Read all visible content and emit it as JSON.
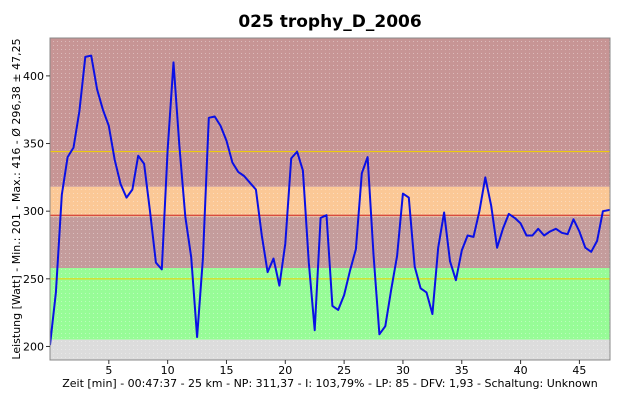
{
  "chart_data": {
    "type": "line",
    "title": "025 trophy_D_2006",
    "ylabel": "Leistung [Watt] - Min.: 201 - Max.: 416 - Ø 296,38 ± 47,25",
    "xlabel": "Zeit [min] - 00:47:37 - 25 km - NP: 311,37 - I: 103,79% - LP: 85 - DFV: 1,93 - Schaltung: Unknown",
    "xlim": [
      0,
      47.6
    ],
    "ylim": [
      190,
      428
    ],
    "x_ticks": [
      5,
      10,
      15,
      20,
      25,
      30,
      35,
      40,
      45
    ],
    "y_ticks": [
      200,
      250,
      300,
      350,
      400
    ],
    "grid": false,
    "zones": [
      {
        "from": 318,
        "to": 428,
        "color": "#c79595"
      },
      {
        "from": 296,
        "to": 318,
        "color": "#fbc896"
      },
      {
        "from": 258,
        "to": 296,
        "color": "#c49c9c"
      },
      {
        "from": 205,
        "to": 258,
        "color": "#97fc97"
      },
      {
        "from": 190,
        "to": 205,
        "color": "#dcdcdc"
      }
    ],
    "reference_lines": [
      {
        "value": 344,
        "color": "#f2d200"
      },
      {
        "value": 297,
        "color": "#cc2222"
      },
      {
        "value": 250,
        "color": "#f2d200"
      }
    ],
    "series": [
      {
        "color": "#0a10e6",
        "x": [
          0,
          0.5,
          1.0,
          1.5,
          2.0,
          2.5,
          3.0,
          3.5,
          4.0,
          4.5,
          5.0,
          5.5,
          6.0,
          6.5,
          7.0,
          7.5,
          8.0,
          8.5,
          9.0,
          9.5,
          10.0,
          10.5,
          11.0,
          11.5,
          12.0,
          12.5,
          13.0,
          13.5,
          14.0,
          14.5,
          15.0,
          15.5,
          16.0,
          16.5,
          17.0,
          17.5,
          18.0,
          18.5,
          19.0,
          19.5,
          20.0,
          20.5,
          21.0,
          21.5,
          22.0,
          22.5,
          23.0,
          23.5,
          24.0,
          24.5,
          25.0,
          25.5,
          26.0,
          26.5,
          27.0,
          27.5,
          28.0,
          28.5,
          29.0,
          29.5,
          30.0,
          30.5,
          31.0,
          31.5,
          32.0,
          32.5,
          33.0,
          33.5,
          34.0,
          34.5,
          35.0,
          35.5,
          36.0,
          36.5,
          37.0,
          37.5,
          38.0,
          38.5,
          39.0,
          39.5,
          40.0,
          40.5,
          41.0,
          41.5,
          42.0,
          42.5,
          43.0,
          43.5,
          44.0,
          44.5,
          45.0,
          45.5,
          46.0,
          46.5,
          47.0,
          47.6
        ],
        "y": [
          201,
          240,
          312,
          340,
          347,
          374,
          414,
          415,
          390,
          375,
          363,
          338,
          320,
          310,
          316,
          341,
          335,
          300,
          262,
          257,
          345,
          410,
          348,
          296,
          266,
          207,
          265,
          369,
          370,
          363,
          352,
          336,
          329,
          326,
          321,
          316,
          282,
          255,
          265,
          245,
          276,
          339,
          344,
          330,
          262,
          212,
          295,
          297,
          230,
          227,
          238,
          256,
          272,
          328,
          340,
          268,
          209,
          215,
          242,
          267,
          313,
          310,
          259,
          243,
          240,
          224,
          273,
          299,
          263,
          249,
          271,
          282,
          281,
          300,
          325,
          304,
          273,
          287,
          298,
          295,
          291,
          282,
          282,
          287,
          282,
          285,
          287,
          284,
          283,
          294,
          285,
          273,
          270,
          278,
          300,
          301
        ]
      }
    ]
  }
}
